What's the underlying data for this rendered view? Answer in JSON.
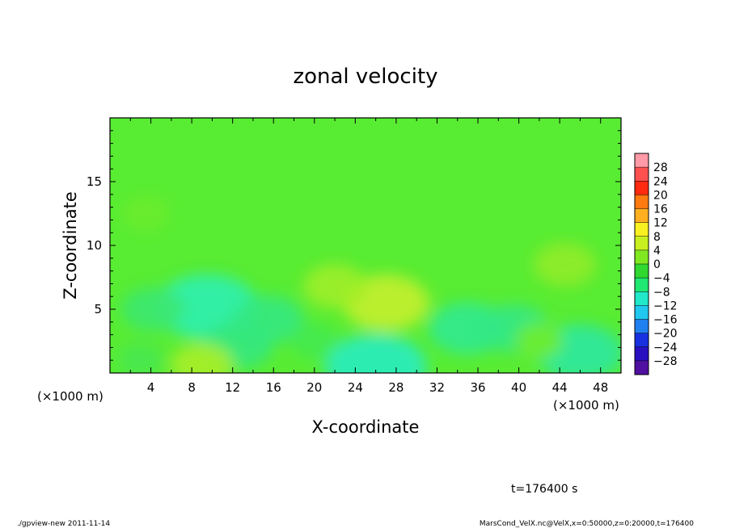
{
  "chart_data": {
    "type": "heatmap",
    "title": "zonal velocity",
    "xlabel": "X-coordinate",
    "ylabel": "Z-coordinate",
    "x_unit_left": "(×1000 m)",
    "x_unit_right": "(×1000 m)",
    "xlim": [
      0,
      50
    ],
    "ylim": [
      0,
      20
    ],
    "x_ticks": [
      4,
      8,
      12,
      16,
      20,
      24,
      28,
      32,
      36,
      40,
      44,
      48
    ],
    "x_tick_labels": [
      "4",
      "8",
      "12",
      "16",
      "20",
      "24",
      "28",
      "32",
      "36",
      "40",
      "44",
      "48"
    ],
    "y_ticks": [
      5,
      10,
      15
    ],
    "y_tick_labels": [
      "5",
      "10",
      "15"
    ],
    "colorbar": {
      "levels": [
        28,
        24,
        20,
        16,
        12,
        8,
        4,
        0,
        -4,
        -8,
        -12,
        -16,
        -20,
        -24,
        -28
      ],
      "labels": [
        "28",
        "24",
        "20",
        "16",
        "12",
        "8",
        "4",
        "0",
        "−4",
        "−8",
        "−12",
        "−16",
        "−20",
        "−24",
        "−28"
      ],
      "colors": [
        "#ff9aa6",
        "#ff5050",
        "#ff2a10",
        "#ff7a10",
        "#ffb020",
        "#f8f020",
        "#c8f020",
        "#80e820",
        "#30d830",
        "#20e870",
        "#20e8c8",
        "#20c8f0",
        "#2080f0",
        "#1830e0",
        "#2810c0",
        "#5010a0"
      ]
    },
    "field": {
      "background": "#58ec32",
      "features": [
        {
          "x": 9.5,
          "z": 5.2,
          "value": -9,
          "color": "#2ef0b0"
        },
        {
          "x": 4.2,
          "z": 5.0,
          "value": -4,
          "color": "#3ce870"
        },
        {
          "x": 15.5,
          "z": 4.2,
          "value": -5,
          "color": "#34e880"
        },
        {
          "x": 27.0,
          "z": 5.5,
          "value": 7,
          "color": "#c4f02c"
        },
        {
          "x": 22.0,
          "z": 6.8,
          "value": 4,
          "color": "#a0ee28"
        },
        {
          "x": 35.0,
          "z": 3.5,
          "value": -6,
          "color": "#30ea90"
        },
        {
          "x": 39.5,
          "z": 3.5,
          "value": -5,
          "color": "#34e884"
        },
        {
          "x": 46.0,
          "z": 1.6,
          "value": -7,
          "color": "#2ee8a0"
        },
        {
          "x": 26.0,
          "z": 0.5,
          "value": -9,
          "color": "#28ecc0"
        },
        {
          "x": 12.5,
          "z": 2.2,
          "value": -5,
          "color": "#34e880"
        },
        {
          "x": 9.0,
          "z": 0.6,
          "value": 4,
          "color": "#a8ee28"
        },
        {
          "x": 3.0,
          "z": 1.0,
          "value": -2,
          "color": "#48e850"
        },
        {
          "x": 44.5,
          "z": 8.5,
          "value": 4,
          "color": "#90ec28"
        },
        {
          "x": 3.5,
          "z": 12.5,
          "value": 2,
          "color": "#6cec2c"
        },
        {
          "x": 42.0,
          "z": 2.5,
          "value": 2,
          "color": "#70ec2c"
        },
        {
          "x": 20.0,
          "z": 2.5,
          "value": -2,
          "color": "#44ea50"
        }
      ]
    },
    "annotation": "t=176400 s"
  },
  "footer": {
    "left": "./gpview-new  2011-11-14",
    "right": "MarsCond_VelX.nc@VelX,x=0:50000,z=0:20000,t=176400"
  }
}
